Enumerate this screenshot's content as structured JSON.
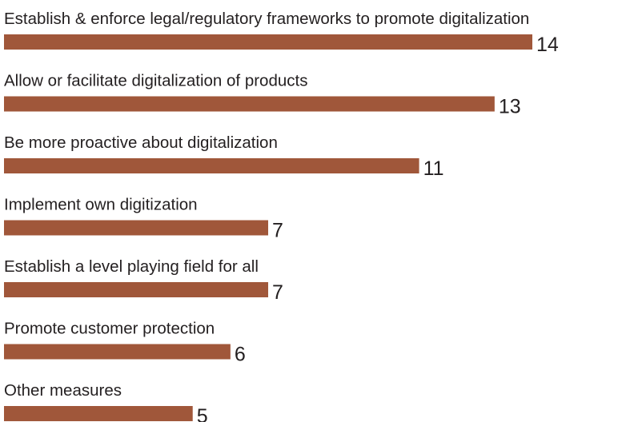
{
  "chart_data": {
    "type": "bar",
    "orientation": "horizontal",
    "categories": [
      "Establish & enforce legal/regulatory frameworks to promote digitalization",
      "Allow or facilitate digitalization of products",
      "Be more proactive about digitalization",
      "Implement own digitization",
      "Establish a level playing field for all",
      "Promote customer protection",
      "Other measures"
    ],
    "values": [
      14,
      13,
      11,
      7,
      7,
      6,
      5
    ],
    "value_labels": [
      "14",
      "13",
      "11",
      "7",
      "7",
      "6",
      "5"
    ],
    "title": "",
    "xlabel": "",
    "ylabel": "",
    "xlim": [
      0,
      14
    ],
    "grid": false,
    "legend": "none",
    "bar_color": "#a0573a"
  }
}
